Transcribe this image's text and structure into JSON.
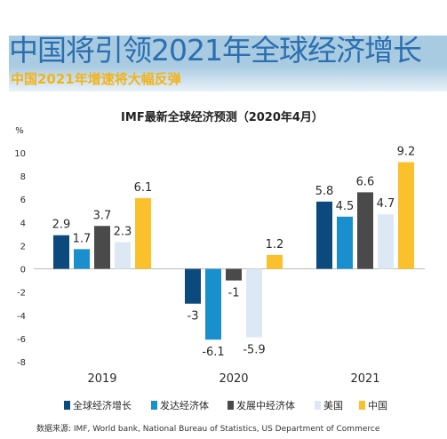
{
  "header": {
    "title": "中国将引领2021年全球经济增长",
    "subtitle": "中国2021年增速将大幅反弹"
  },
  "colors": {
    "title": "#2c6fb0",
    "subtitle": "#f3b31a",
    "band": "#a9cbe1"
  },
  "chart_data": {
    "type": "bar",
    "title": "IMF最新全球经济预测（2020年4月）",
    "ylabel": "%",
    "ylim": [
      -8,
      10
    ],
    "yticks": [
      -8,
      -6,
      -4,
      -2,
      0,
      2,
      4,
      6,
      8,
      10
    ],
    "categories": [
      "2019",
      "2020",
      "2021"
    ],
    "legend_position": "bottom",
    "series": [
      {
        "name": "全球经济增长",
        "color": "#0c4a7e",
        "values": [
          2.9,
          -3,
          5.8
        ],
        "labels": [
          "2.9",
          "-3",
          "5.8"
        ]
      },
      {
        "name": "发达经济体",
        "color": "#1a8fce",
        "values": [
          1.7,
          -6.1,
          4.5
        ],
        "labels": [
          "1.7",
          "-6.1",
          "4.5"
        ]
      },
      {
        "name": "发展中经济体",
        "color": "#4a4a4a",
        "values": [
          3.7,
          -1,
          6.6
        ],
        "labels": [
          "3.7",
          "-1",
          "6.6"
        ]
      },
      {
        "name": "美国",
        "color": "#dce9f5",
        "values": [
          2.3,
          -5.9,
          4.7
        ],
        "labels": [
          "2.3",
          "-5.9",
          "4.7"
        ]
      },
      {
        "name": "中国",
        "color": "#fbc12d",
        "values": [
          6.1,
          1.2,
          9.2
        ],
        "labels": [
          "6.1",
          "1.2",
          "9.2"
        ]
      }
    ]
  },
  "footer": {
    "source": "数据来源: IMF, World bank, National Bureau of Statistics, US Department of Commerce"
  }
}
